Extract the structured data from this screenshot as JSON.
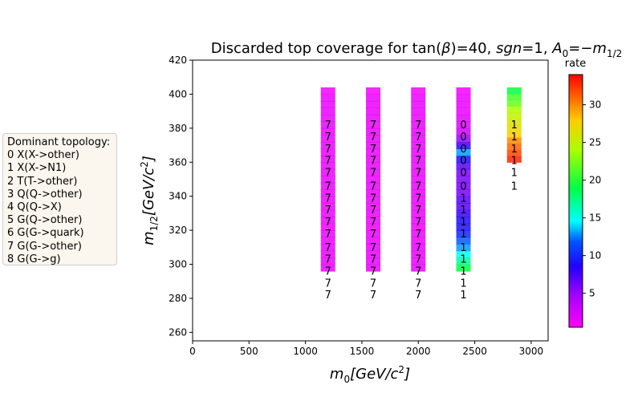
{
  "chart_data": {
    "type": "heatmap",
    "title_prefix": "Discarded top coverage for tan(",
    "title_beta": "β",
    "title_mid1": ")=40, ",
    "title_sgn": "sgn",
    "title_mid2": "=1, ",
    "title_A": "A",
    "title_A_sub": "0",
    "title_mid3": "=−",
    "title_m": "m",
    "title_m_sub": "1/2",
    "xlabel_main": "m",
    "xlabel_sub": "0",
    "xlabel_unit": "[GeV/c",
    "xlabel_sup": "2",
    "xlabel_close": "]",
    "ylabel_main": "m",
    "ylabel_sub": "1/2",
    "ylabel_unit": "[GeV/c",
    "ylabel_sup": "2",
    "ylabel_close": "]",
    "xlim": [
      0,
      3150
    ],
    "ylim": [
      255,
      420
    ],
    "xticks": [
      0,
      500,
      1000,
      1500,
      2000,
      2500,
      3000
    ],
    "yticks": [
      260,
      280,
      300,
      320,
      340,
      360,
      380,
      400,
      420
    ],
    "colorbar_label": "rate",
    "colorbar_range": [
      0.5,
      34
    ],
    "colorbar_ticks": [
      5,
      10,
      15,
      20,
      25,
      30
    ],
    "columns": [
      {
        "x": 1200,
        "y_low": 296,
        "y_high": 404,
        "cell_rates": [
          1.5,
          1.5,
          1.5,
          1.5,
          1.5,
          1.5,
          1.5,
          1.5,
          1.5,
          1.5,
          1.5,
          1.5,
          1.5,
          1.5,
          1.5,
          1.5,
          1.5,
          1.5,
          1.5,
          1.5,
          1.5,
          1.5,
          1.5,
          1.5,
          1.5,
          1.5,
          1.0
        ],
        "label_y": [
          382,
          375,
          368,
          361,
          354,
          346,
          339,
          332,
          325,
          318,
          310,
          303,
          296,
          289,
          282
        ],
        "labels": [
          "7",
          "7",
          "7",
          "7",
          "7",
          "7",
          "7",
          "7",
          "7",
          "7",
          "7",
          "7",
          "7",
          "7",
          "7"
        ]
      },
      {
        "x": 1600,
        "y_low": 296,
        "y_high": 404,
        "cell_rates": [
          1.5,
          1.5,
          1.5,
          1.5,
          1.5,
          1.5,
          1.5,
          1.5,
          1.5,
          1.5,
          1.5,
          1.5,
          1.5,
          1.5,
          1.5,
          1.5,
          1.5,
          1.5,
          1.5,
          1.5,
          1.5,
          1.5,
          1.5,
          1.5,
          1.5,
          1.5,
          1.0
        ],
        "label_y": [
          382,
          375,
          368,
          361,
          354,
          346,
          339,
          332,
          325,
          318,
          310,
          303,
          296,
          289,
          282
        ],
        "labels": [
          "7",
          "7",
          "7",
          "7",
          "7",
          "7",
          "7",
          "7",
          "7",
          "7",
          "7",
          "7",
          "7",
          "7",
          "7"
        ]
      },
      {
        "x": 2000,
        "y_low": 296,
        "y_high": 404,
        "cell_rates": [
          1.5,
          1.5,
          1.5,
          1.5,
          1.5,
          1.5,
          1.5,
          1.5,
          1.5,
          1.5,
          1.5,
          1.5,
          1.5,
          1.5,
          1.5,
          1.5,
          1.5,
          1.5,
          1.5,
          1.5,
          1.5,
          1.5,
          1.5,
          1.5,
          1.5,
          1.5,
          1.0
        ],
        "label_y": [
          382,
          375,
          368,
          361,
          354,
          346,
          339,
          332,
          325,
          318,
          310,
          303,
          296,
          289,
          282
        ],
        "labels": [
          "7",
          "7",
          "7",
          "7",
          "7",
          "7",
          "7",
          "7",
          "7",
          "7",
          "7",
          "7",
          "7",
          "7",
          "7"
        ]
      },
      {
        "x": 2400,
        "y_low": 296,
        "y_high": 404,
        "cell_rates": [
          19,
          17,
          15,
          13,
          12,
          10,
          9,
          9,
          8,
          7,
          7,
          6,
          6,
          6,
          6,
          7,
          9,
          13,
          8,
          5,
          3,
          2,
          2,
          1.5,
          1.5,
          1.5,
          1.0
        ],
        "label_y": [
          382,
          375,
          368,
          361,
          354,
          346,
          339,
          332,
          325,
          318,
          310,
          303,
          296,
          289,
          282
        ],
        "labels": [
          "0",
          "0",
          "0",
          "0",
          "0",
          "0",
          "1",
          "1",
          "1",
          "1",
          "1",
          "1",
          "1",
          "1",
          "1"
        ]
      },
      {
        "x": 2850,
        "y_low": 360,
        "y_high": 404,
        "cell_rates": [
          33,
          32,
          31,
          30,
          28,
          27,
          26,
          25,
          24,
          22,
          21,
          19
        ],
        "label_y": [
          382,
          375,
          368,
          361,
          354,
          346
        ],
        "labels": [
          "1",
          "1",
          "1",
          "1",
          "1",
          "1"
        ]
      }
    ]
  },
  "legend": {
    "title": "Dominant topology:",
    "items": [
      "0 X(X->other)",
      "1 X(X->N1)",
      "2 T(T->other)",
      "3 Q(Q->other)",
      "4 Q(Q->X)",
      "5 G(Q->other)",
      "6 G(G->quark)",
      "7 G(G->other)",
      "8 G(G->g)"
    ]
  }
}
